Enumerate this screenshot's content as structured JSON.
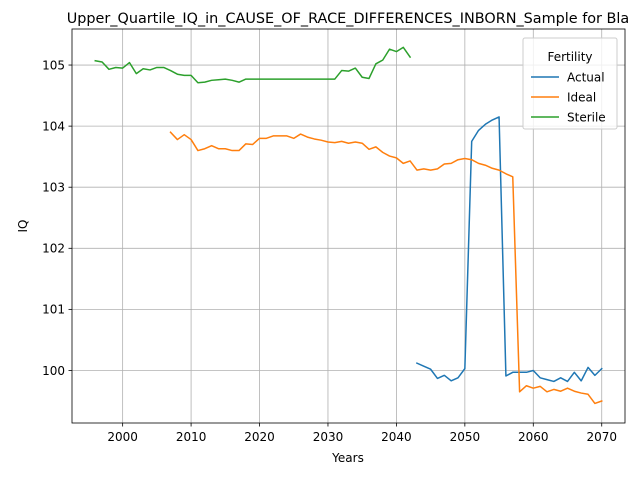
{
  "chart_data": {
    "type": "line",
    "title": "Upper_Quartile_IQ_in_CAUSE_OF_RACE_DIFFERENCES_INBORN_Sample for Bla",
    "xlabel": "Years",
    "ylabel": "IQ",
    "xlim": [
      1992.6,
      2073.4
    ],
    "ylim": [
      99.14,
      105.59
    ],
    "xticks": [
      2000,
      2010,
      2020,
      2030,
      2040,
      2050,
      2060,
      2070
    ],
    "yticks": [
      100,
      101,
      102,
      103,
      104,
      105
    ],
    "grid": true,
    "legend": {
      "title": "Fertility",
      "placement": "upper right"
    },
    "series": [
      {
        "name": "Actual",
        "color": "#1f77b4",
        "x": [
          2043,
          2044,
          2045,
          2046,
          2047,
          2048,
          2049,
          2050,
          2051,
          2052,
          2053,
          2054,
          2055,
          2056,
          2057,
          2058,
          2059,
          2060,
          2061,
          2062,
          2063,
          2064,
          2065,
          2066,
          2067,
          2068,
          2069,
          2070
        ],
        "y": [
          100.12,
          100.07,
          100.02,
          99.87,
          99.92,
          99.83,
          99.88,
          100.03,
          103.75,
          103.93,
          104.03,
          104.1,
          104.15,
          99.91,
          99.97,
          99.97,
          99.97,
          100.0,
          99.88,
          99.85,
          99.82,
          99.88,
          99.82,
          99.97,
          99.83,
          100.05,
          99.92,
          100.03
        ]
      },
      {
        "name": "Ideal",
        "color": "#ff7f0e",
        "x": [
          2007,
          2008,
          2009,
          2010,
          2011,
          2012,
          2013,
          2014,
          2015,
          2016,
          2017,
          2018,
          2019,
          2020,
          2021,
          2022,
          2023,
          2024,
          2025,
          2026,
          2027,
          2028,
          2029,
          2030,
          2031,
          2032,
          2033,
          2034,
          2035,
          2036,
          2037,
          2038,
          2039,
          2040,
          2041,
          2042,
          2043,
          2044,
          2045,
          2046,
          2047,
          2048,
          2049,
          2050,
          2051,
          2052,
          2053,
          2054,
          2055,
          2056,
          2057,
          2058,
          2059,
          2060,
          2061,
          2062,
          2063,
          2064,
          2065,
          2066,
          2067,
          2068,
          2069,
          2070
        ],
        "y": [
          103.9,
          103.78,
          103.86,
          103.78,
          103.6,
          103.63,
          103.68,
          103.63,
          103.63,
          103.6,
          103.6,
          103.71,
          103.7,
          103.8,
          103.8,
          103.84,
          103.84,
          103.84,
          103.8,
          103.87,
          103.82,
          103.79,
          103.77,
          103.74,
          103.73,
          103.75,
          103.72,
          103.74,
          103.72,
          103.62,
          103.66,
          103.57,
          103.51,
          103.48,
          103.39,
          103.43,
          103.28,
          103.3,
          103.28,
          103.3,
          103.38,
          103.39,
          103.45,
          103.47,
          103.45,
          103.39,
          103.36,
          103.31,
          103.28,
          103.22,
          103.17,
          99.65,
          99.75,
          99.71,
          99.74,
          99.65,
          99.69,
          99.66,
          99.71,
          99.66,
          99.63,
          99.61,
          99.46,
          99.5
        ]
      },
      {
        "name": "Sterile",
        "color": "#2ca02c",
        "x": [
          1996,
          1997,
          1998,
          1999,
          2000,
          2001,
          2002,
          2003,
          2004,
          2005,
          2006,
          2007,
          2008,
          2009,
          2010,
          2011,
          2012,
          2013,
          2014,
          2015,
          2016,
          2017,
          2018,
          2019,
          2020,
          2021,
          2022,
          2023,
          2024,
          2025,
          2026,
          2027,
          2028,
          2029,
          2030,
          2031,
          2032,
          2033,
          2034,
          2035,
          2036,
          2037,
          2038,
          2039,
          2040,
          2041,
          2042
        ],
        "y": [
          105.07,
          105.05,
          104.93,
          104.96,
          104.95,
          105.04,
          104.86,
          104.94,
          104.92,
          104.96,
          104.96,
          104.91,
          104.85,
          104.83,
          104.83,
          104.71,
          104.72,
          104.75,
          104.76,
          104.77,
          104.75,
          104.72,
          104.77,
          104.77,
          104.77,
          104.77,
          104.77,
          104.77,
          104.77,
          104.77,
          104.77,
          104.77,
          104.77,
          104.77,
          104.77,
          104.77,
          104.91,
          104.9,
          104.95,
          104.8,
          104.78,
          105.02,
          105.08,
          105.26,
          105.22,
          105.29,
          105.13
        ]
      }
    ]
  }
}
